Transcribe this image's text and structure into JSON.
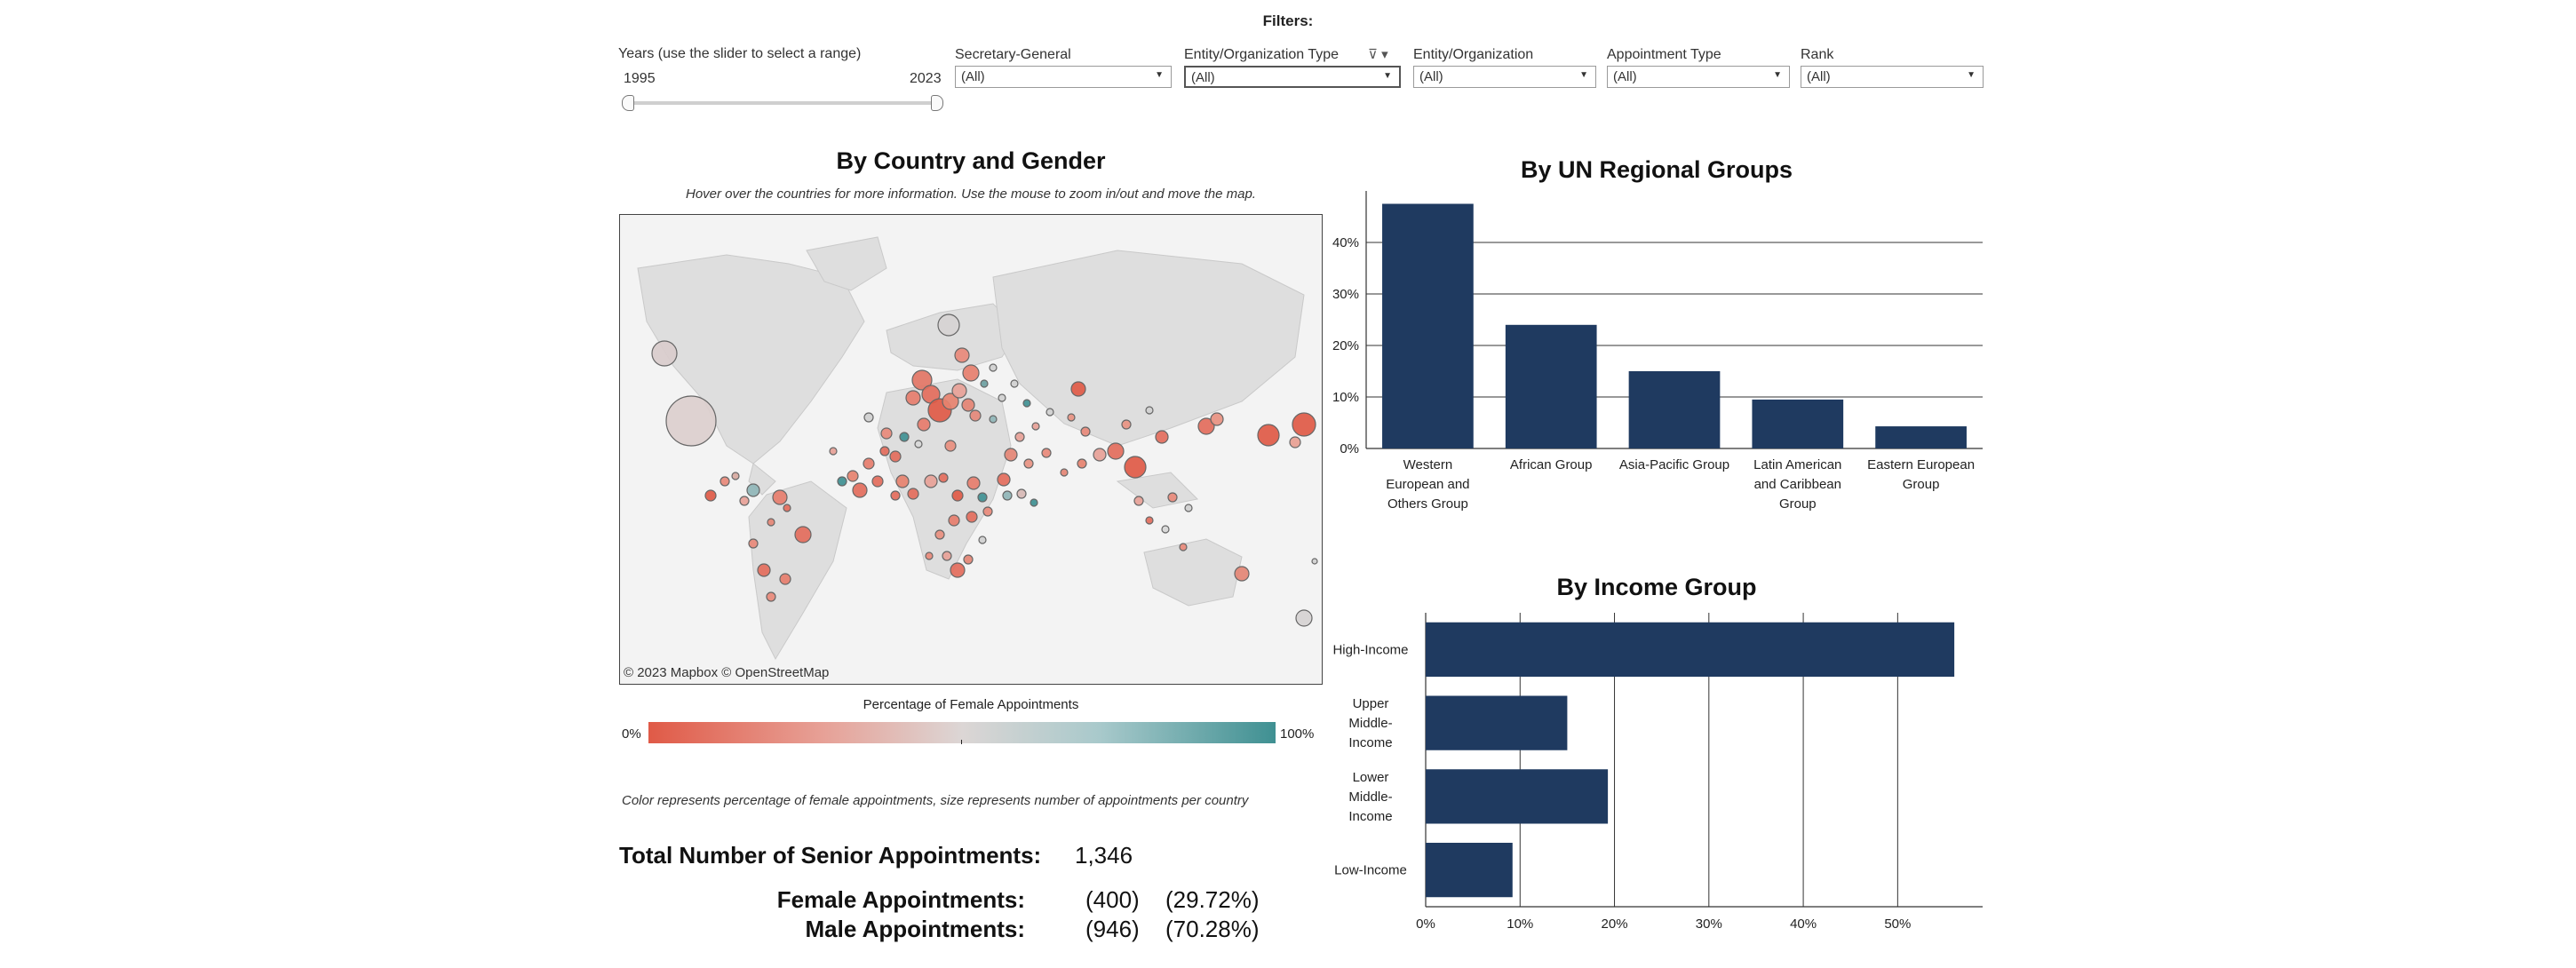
{
  "filters": {
    "title": "Filters:",
    "years": {
      "label": "Years (use the slider to select a range)",
      "min": "1995",
      "max": "2023"
    },
    "dropdowns": [
      {
        "label": "Secretary-General",
        "value": "(All)"
      },
      {
        "label": "Entity/Organization Type",
        "value": "(All)"
      },
      {
        "label": "Entity/Organization",
        "value": "(All)"
      },
      {
        "label": "Appointment Type",
        "value": "(All)"
      },
      {
        "label": "Rank",
        "value": "(All)"
      }
    ]
  },
  "map": {
    "title": "By Country and Gender",
    "note": "Hover over the countries for more information. Use the mouse to zoom in/out and move the map.",
    "credit": "© 2023 Mapbox © OpenStreetMap",
    "legend_title": "Percentage of Female Appointments",
    "legend_min": "0%",
    "legend_max": "100%",
    "caption": "Color represents percentage of female appointments, size represents number of appointments per country"
  },
  "stats": {
    "total_label": "Total Number of Senior Appointments:",
    "total_value": "1,346",
    "female_label": "Female Appointments:",
    "female_count": "(400)",
    "female_pct": "(29.72%)",
    "male_label": "Male Appointments:",
    "male_count": "(946)",
    "male_pct": "(70.28%)"
  },
  "colors": {
    "bar": "#1f3a60",
    "female_low": "#e05a47",
    "female_high": "#3f9092"
  },
  "chart_data": [
    {
      "type": "bar",
      "title": "By UN Regional Groups",
      "categories": [
        "Western European and Others Group",
        "African Group",
        "Asia-Pacific Group",
        "Latin American and Caribbean Group",
        "Eastern European Group"
      ],
      "category_lines": [
        [
          "Western",
          "European and",
          "Others Group"
        ],
        [
          "African Group"
        ],
        [
          "Asia-Pacific Group"
        ],
        [
          "Latin American",
          "and Caribbean",
          "Group"
        ],
        [
          "Eastern European",
          "Group"
        ]
      ],
      "values": [
        47.5,
        24,
        15,
        9.5,
        4.3
      ],
      "ticks": [
        "0%",
        "10%",
        "20%",
        "30%",
        "40%"
      ],
      "tick_values": [
        0,
        10,
        20,
        30,
        40
      ],
      "ylim": [
        0,
        50
      ],
      "grid": true
    },
    {
      "type": "bar",
      "orientation": "horizontal",
      "title": "By Income Group",
      "categories": [
        "High-Income",
        "Upper Middle-Income",
        "Lower Middle-Income",
        "Low-Income"
      ],
      "category_lines": [
        [
          "High-Income"
        ],
        [
          "Upper",
          "Middle-",
          "Income"
        ],
        [
          "Lower",
          "Middle-",
          "Income"
        ],
        [
          "Low-Income"
        ]
      ],
      "values": [
        56,
        15,
        19.3,
        9.2
      ],
      "ticks": [
        "0%",
        "10%",
        "20%",
        "30%",
        "40%",
        "50%"
      ],
      "tick_values": [
        0,
        10,
        20,
        30,
        40,
        50
      ],
      "xlim": [
        0,
        59
      ],
      "grid": true
    }
  ]
}
